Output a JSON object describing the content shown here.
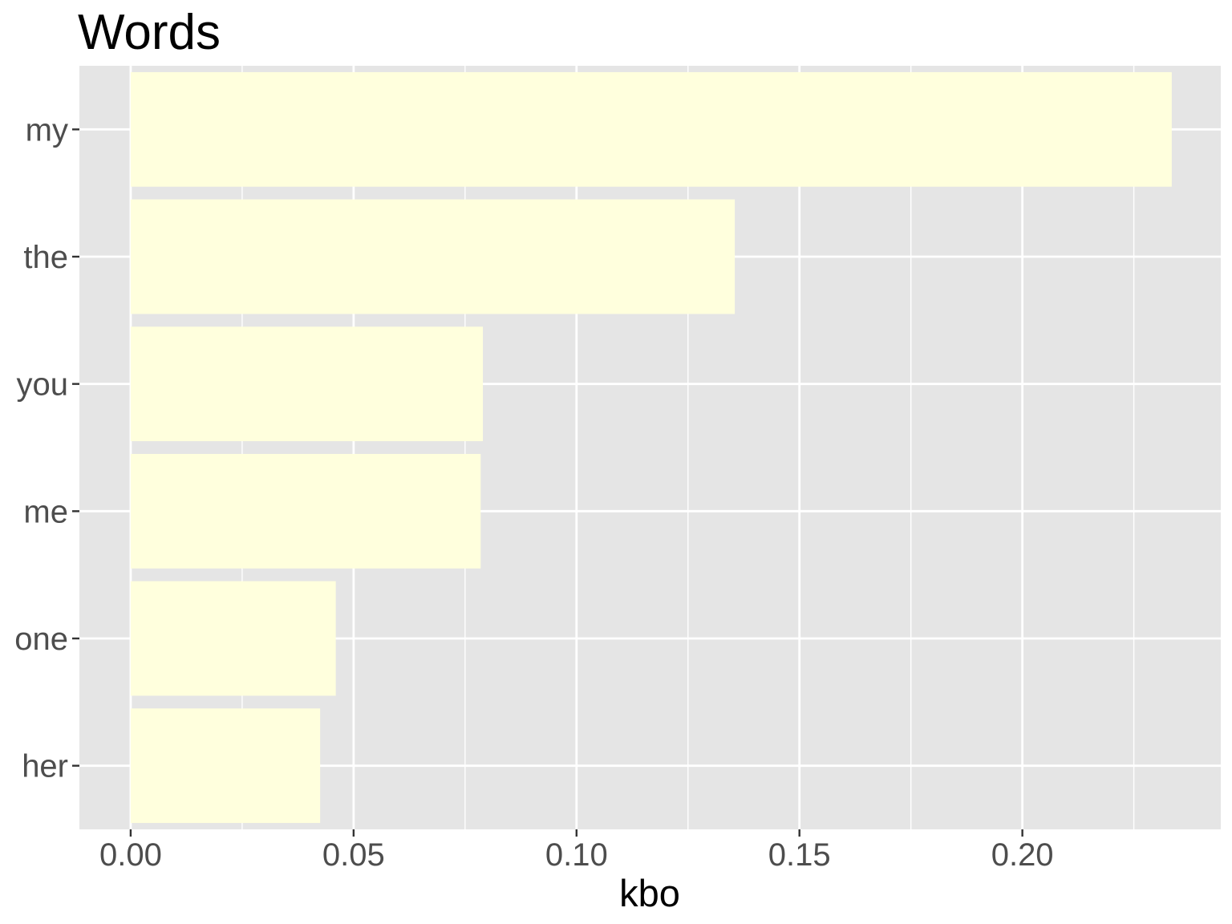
{
  "chart_data": {
    "type": "bar",
    "orientation": "horizontal",
    "title": "Words",
    "xlabel": "kbo",
    "ylabel": "",
    "categories": [
      "my",
      "the",
      "you",
      "me",
      "one",
      "her"
    ],
    "values": [
      0.2335,
      0.1355,
      0.079,
      0.0785,
      0.046,
      0.0425
    ],
    "xlim": [
      -0.0115,
      0.2445
    ],
    "x_ticks": [
      0.0,
      0.05,
      0.1,
      0.15,
      0.2
    ],
    "x_tick_labels": [
      "0.00",
      "0.05",
      "0.10",
      "0.15",
      "0.20"
    ],
    "grid": true,
    "legend": "none",
    "colors": {
      "bar_fill": "#ffffdd",
      "panel_background": "#e5e5e5",
      "grid_line": "#ffffff",
      "tick_mark": "#333333"
    }
  }
}
